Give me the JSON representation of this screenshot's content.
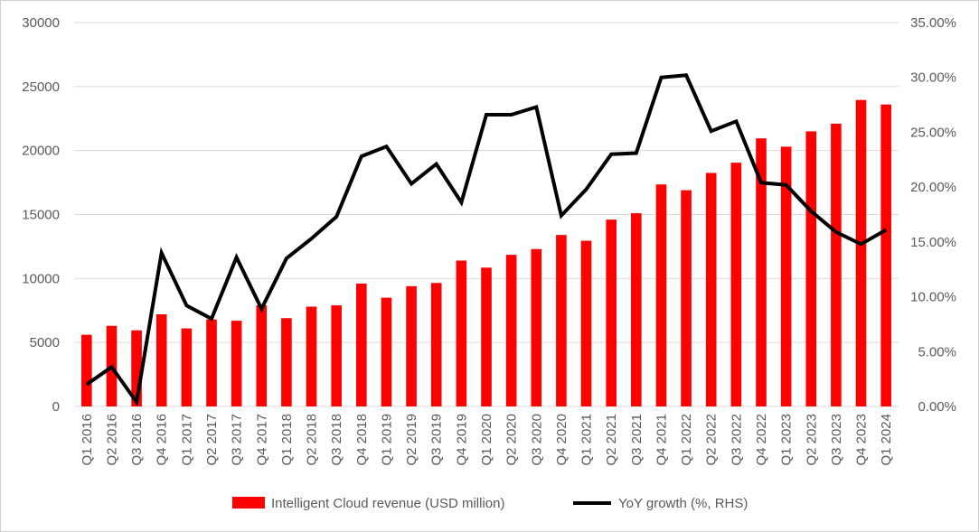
{
  "chart_data": {
    "type": "bar",
    "title": "",
    "xlabel": "",
    "ylabel": "",
    "categories": [
      "Q1 2016",
      "Q2 2016",
      "Q3 2016",
      "Q4 2016",
      "Q1 2017",
      "Q2 2017",
      "Q3 2017",
      "Q4 2017",
      "Q1 2018",
      "Q2 2018",
      "Q3 2018",
      "Q4 2018",
      "Q1 2019",
      "Q2 2019",
      "Q3 2019",
      "Q4 2019",
      "Q1 2020",
      "Q2 2020",
      "Q3 2020",
      "Q4 2020",
      "Q1 2021",
      "Q2 2021",
      "Q3 2021",
      "Q4 2021",
      "Q1 2022",
      "Q2 2022",
      "Q3 2022",
      "Q4 2022",
      "Q1 2023",
      "Q2 2023",
      "Q3 2023",
      "Q4 2023",
      "Q1 2024"
    ],
    "series": [
      {
        "name": "Intelligent Cloud revenue (USD million)",
        "type": "bar",
        "axis": "left",
        "color": "#ff0000",
        "values": [
          5600,
          6300,
          5950,
          7200,
          6100,
          6800,
          6700,
          7900,
          6900,
          7800,
          7900,
          9600,
          8500,
          9400,
          9650,
          11400,
          10850,
          11850,
          12300,
          13400,
          12950,
          14600,
          15100,
          17350,
          16900,
          18250,
          19050,
          20950,
          20300,
          21500,
          22100,
          23950,
          23600
        ]
      },
      {
        "name": "YoY growth (%, RHS)",
        "type": "line",
        "axis": "right",
        "color": "#000000",
        "values": [
          2.0,
          3.6,
          0.4,
          14.0,
          9.2,
          8.0,
          13.6,
          8.9,
          13.5,
          15.3,
          17.3,
          22.8,
          23.7,
          20.3,
          22.1,
          18.6,
          26.6,
          26.6,
          27.3,
          17.4,
          19.8,
          23.0,
          23.1,
          30.0,
          30.2,
          25.1,
          26.0,
          20.4,
          20.2,
          17.8,
          15.9,
          14.8,
          16.1
        ]
      }
    ],
    "yleft": {
      "min": 0,
      "max": 30000,
      "step": 5000,
      "tick_labels": [
        "0",
        "5000",
        "10000",
        "15000",
        "20000",
        "25000",
        "30000"
      ]
    },
    "yright": {
      "min": 0,
      "max": 35,
      "step": 5,
      "tick_labels": [
        "0.00%",
        "5.00%",
        "10.00%",
        "15.00%",
        "20.00%",
        "25.00%",
        "30.00%",
        "35.00%"
      ]
    },
    "grid": true,
    "legend_position": "bottom"
  }
}
